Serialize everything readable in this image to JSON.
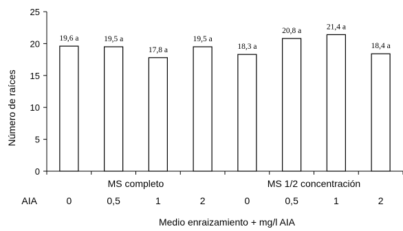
{
  "chart_data": {
    "type": "bar",
    "title": "",
    "ylabel": "Número de raíces",
    "xlabel": "Medio enraizamiento + mg/l AIA",
    "ylim": [
      0,
      25
    ],
    "y_ticks": [
      0,
      5,
      10,
      15,
      20,
      25
    ],
    "grid": false,
    "groups": [
      {
        "name": "MS completo",
        "categories": [
          "0",
          "0,5",
          "1",
          "2"
        ]
      },
      {
        "name": "MS 1/2 concentración",
        "categories": [
          "0",
          "0,5",
          "1",
          "2"
        ]
      }
    ],
    "row_header": "AIA",
    "categories": [
      "0",
      "0,5",
      "1",
      "2",
      "0",
      "0,5",
      "1",
      "2"
    ],
    "values": [
      19.6,
      19.5,
      17.8,
      19.5,
      18.3,
      20.8,
      21.4,
      18.4
    ],
    "data_labels": [
      "19,6 a",
      "19,5 a",
      "17,8 a",
      "19,5 a",
      "18,3 a",
      "20,8 a",
      "21,4 a",
      "18,4 a"
    ],
    "bar_fill": "#ffffff",
    "bar_stroke": "#000000"
  }
}
